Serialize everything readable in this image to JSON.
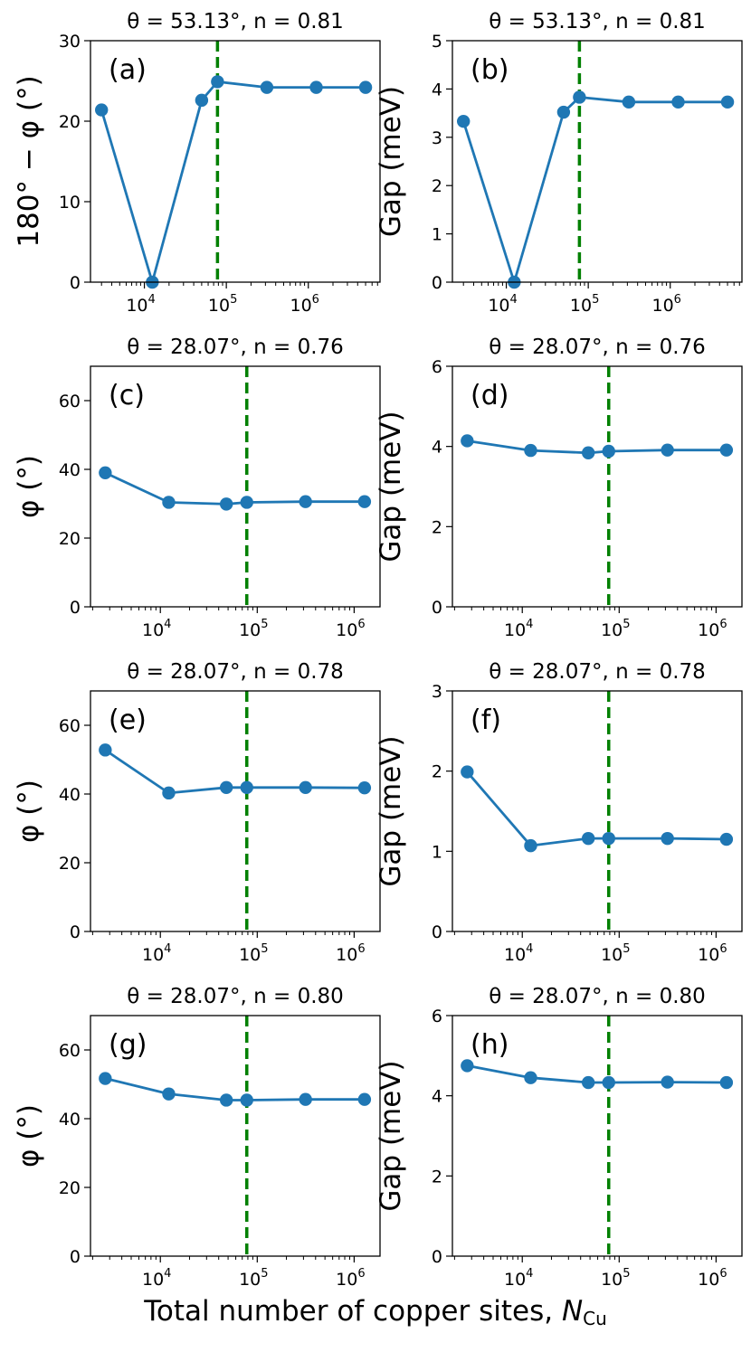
{
  "figure": {
    "xlabel_text": "Total number of copper sites, ",
    "xlabel_symbol": "N",
    "xlabel_subscript": "Cu"
  },
  "colors": {
    "series": "#1f77b4",
    "marker_line": "#008000",
    "axes": "#000000"
  },
  "chart_data": [
    {
      "type": "line",
      "panel": "(a)",
      "title": "θ = 53.13°, n = 0.81",
      "xlabel": "",
      "ylabel": "180° − φ (°)",
      "xscale": "log",
      "xlim": [
        2200,
        7500000
      ],
      "ylim": [
        0,
        30
      ],
      "yticks": [
        0,
        10,
        20,
        30
      ],
      "xtick_labels": [
        "10^4",
        "10^5",
        "10^6"
      ],
      "series": [
        {
          "name": "",
          "x": [
            3000,
            12500,
            50000,
            78000,
            312000,
            1250000,
            5000000
          ],
          "values": [
            21.4,
            0.0,
            22.6,
            24.9,
            24.2,
            24.2,
            24.2
          ]
        }
      ],
      "vline_x": 78000
    },
    {
      "type": "line",
      "panel": "(b)",
      "title": "θ = 53.13°, n = 0.81",
      "xlabel": "",
      "ylabel": "Gap (meV)",
      "xscale": "log",
      "xlim": [
        2200,
        7500000
      ],
      "ylim": [
        0,
        5
      ],
      "yticks": [
        0,
        1,
        2,
        3,
        4,
        5
      ],
      "xtick_labels": [
        "10^4",
        "10^5",
        "10^6"
      ],
      "series": [
        {
          "name": "",
          "x": [
            3000,
            12500,
            50000,
            78000,
            312000,
            1250000,
            5000000
          ],
          "values": [
            3.33,
            0.0,
            3.52,
            3.83,
            3.73,
            3.73,
            3.73
          ]
        }
      ],
      "vline_x": 78000
    },
    {
      "type": "line",
      "panel": "(c)",
      "title": "θ = 28.07°, n = 0.76",
      "xlabel": "",
      "ylabel": "φ (°)",
      "xscale": "log",
      "xlim": [
        1900,
        1850000
      ],
      "ylim": [
        0,
        70
      ],
      "yticks": [
        0,
        20,
        40,
        60
      ],
      "xtick_labels": [
        "10^4",
        "10^5",
        "10^6"
      ],
      "series": [
        {
          "name": "",
          "x": [
            2700,
            12200,
            48000,
            78000,
            315000,
            1280000
          ],
          "values": [
            39.0,
            30.4,
            29.9,
            30.4,
            30.6,
            30.6
          ]
        }
      ],
      "vline_x": 78000
    },
    {
      "type": "line",
      "panel": "(d)",
      "title": "θ = 28.07°, n = 0.76",
      "xlabel": "",
      "ylabel": "Gap (meV)",
      "xscale": "log",
      "xlim": [
        1900,
        1850000
      ],
      "ylim": [
        0,
        6
      ],
      "yticks": [
        0,
        2,
        4,
        6
      ],
      "xtick_labels": [
        "10^4",
        "10^5",
        "10^6"
      ],
      "series": [
        {
          "name": "",
          "x": [
            2700,
            12200,
            48000,
            78000,
            315000,
            1280000
          ],
          "values": [
            4.14,
            3.9,
            3.84,
            3.88,
            3.91,
            3.91
          ]
        }
      ],
      "vline_x": 78000
    },
    {
      "type": "line",
      "panel": "(e)",
      "title": "θ = 28.07°, n = 0.78",
      "xlabel": "",
      "ylabel": "φ (°)",
      "xscale": "log",
      "xlim": [
        1900,
        1850000
      ],
      "ylim": [
        0,
        70
      ],
      "yticks": [
        0,
        20,
        40,
        60
      ],
      "xtick_labels": [
        "10^4",
        "10^5",
        "10^6"
      ],
      "series": [
        {
          "name": "",
          "x": [
            2700,
            12200,
            48000,
            78000,
            315000,
            1280000
          ],
          "values": [
            52.8,
            40.3,
            41.9,
            41.9,
            41.9,
            41.8
          ]
        }
      ],
      "vline_x": 78000
    },
    {
      "type": "line",
      "panel": "(f)",
      "title": "θ = 28.07°, n = 0.78",
      "xlabel": "",
      "ylabel": "Gap (meV)",
      "xscale": "log",
      "xlim": [
        1900,
        1850000
      ],
      "ylim": [
        0,
        3
      ],
      "yticks": [
        0,
        1,
        2,
        3
      ],
      "xtick_labels": [
        "10^4",
        "10^5",
        "10^6"
      ],
      "series": [
        {
          "name": "",
          "x": [
            2700,
            12200,
            48000,
            78000,
            315000,
            1280000
          ],
          "values": [
            1.99,
            1.07,
            1.16,
            1.16,
            1.16,
            1.15
          ]
        }
      ],
      "vline_x": 78000
    },
    {
      "type": "line",
      "panel": "(g)",
      "title": "θ = 28.07°, n = 0.80",
      "xlabel": "",
      "ylabel": "φ (°)",
      "xscale": "log",
      "xlim": [
        1900,
        1850000
      ],
      "ylim": [
        0,
        70
      ],
      "yticks": [
        0,
        20,
        40,
        60
      ],
      "xtick_labels": [
        "10^4",
        "10^5",
        "10^6"
      ],
      "series": [
        {
          "name": "",
          "x": [
            2700,
            12200,
            48000,
            78000,
            315000,
            1280000
          ],
          "values": [
            51.7,
            47.2,
            45.4,
            45.4,
            45.6,
            45.6
          ]
        }
      ],
      "vline_x": 78000
    },
    {
      "type": "line",
      "panel": "(h)",
      "title": "θ = 28.07°, n = 0.80",
      "xlabel": "",
      "ylabel": "Gap (meV)",
      "xscale": "log",
      "xlim": [
        1900,
        1850000
      ],
      "ylim": [
        0,
        6
      ],
      "yticks": [
        0,
        2,
        4,
        6
      ],
      "xtick_labels": [
        "10^4",
        "10^5",
        "10^6"
      ],
      "series": [
        {
          "name": "",
          "x": [
            2700,
            12200,
            48000,
            78000,
            315000,
            1280000
          ],
          "values": [
            4.75,
            4.45,
            4.33,
            4.33,
            4.34,
            4.33
          ]
        }
      ],
      "vline_x": 78000
    }
  ]
}
